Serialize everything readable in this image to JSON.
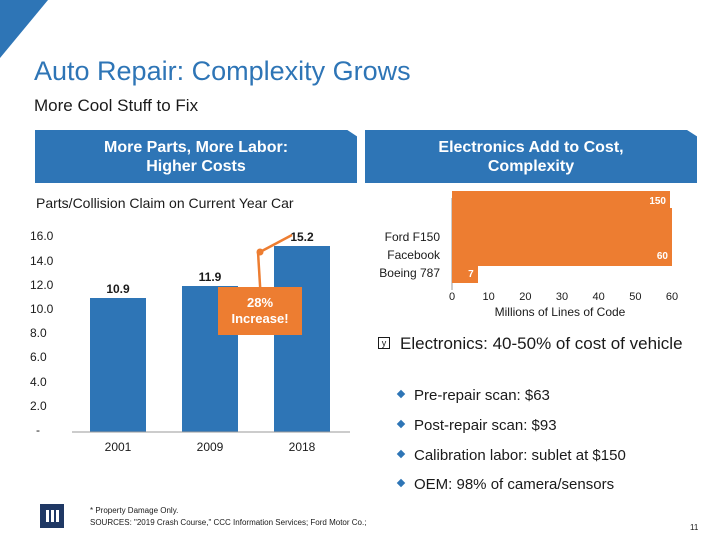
{
  "slide": {
    "title": "Auto Repair: Complexity Grows",
    "subtitle": "More Cool Stuff to Fix",
    "banner_left": "More Parts, More Labor:\nHigher Costs",
    "banner_right": "Electronics Add to Cost,\nComplexity",
    "page_number": "11"
  },
  "colors": {
    "blue": "#2E75B6",
    "orange": "#ED7D31",
    "navy": "#1F3864"
  },
  "chart_data": [
    {
      "type": "bar",
      "title": "Parts/Collision Claim on Current Year Car",
      "categories": [
        "2001",
        "2009",
        "2018"
      ],
      "values": [
        10.9,
        11.9,
        15.2
      ],
      "value_labels": [
        "10.9",
        "11.9",
        "15.2"
      ],
      "y_ticks": [
        "16.0",
        "14.0",
        "12.0",
        "10.0",
        "8.0",
        "6.0",
        "4.0",
        "2.0",
        "-"
      ],
      "ylim": [
        0,
        16
      ],
      "callout": "28%\nIncrease!"
    },
    {
      "type": "bar",
      "orientation": "horizontal",
      "categories": [
        "Ford F150",
        "Facebook",
        "Boeing 787"
      ],
      "values": [
        150,
        60,
        7
      ],
      "value_labels": [
        "150",
        "60",
        "7"
      ],
      "x_ticks": [
        "0",
        "10",
        "20",
        "30",
        "40",
        "50",
        "60"
      ],
      "xlabel": "Millions of Lines of Code",
      "xlim": [
        0,
        60
      ]
    }
  ],
  "bullets": {
    "main": "Electronics: 40-50% of cost of vehicle",
    "main_marker": "y",
    "sub": [
      "Pre-repair scan: $63",
      "Post-repair scan: $93",
      "Calibration labor: sublet at $150",
      "OEM: 98% of camera/sensors"
    ]
  },
  "footnotes": {
    "line1": "* Property Damage Only.",
    "line2": "SOURCES: \"2019 Crash Course,\" CCC Information Services; Ford Motor Co.;"
  }
}
